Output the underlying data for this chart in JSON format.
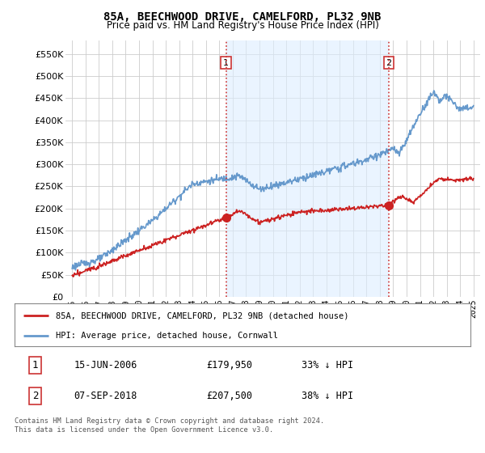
{
  "title": "85A, BEECHWOOD DRIVE, CAMELFORD, PL32 9NB",
  "subtitle": "Price paid vs. HM Land Registry's House Price Index (HPI)",
  "legend_entry1": "85A, BEECHWOOD DRIVE, CAMELFORD, PL32 9NB (detached house)",
  "legend_entry2": "HPI: Average price, detached house, Cornwall",
  "transaction1_date": "15-JUN-2006",
  "transaction1_price": "£179,950",
  "transaction1_pct": "33% ↓ HPI",
  "transaction2_date": "07-SEP-2018",
  "transaction2_price": "£207,500",
  "transaction2_pct": "38% ↓ HPI",
  "footer": "Contains HM Land Registry data © Crown copyright and database right 2024.\nThis data is licensed under the Open Government Licence v3.0.",
  "hpi_color": "#6699cc",
  "hpi_fill_color": "#ddeeff",
  "price_color": "#cc2222",
  "vline_color": "#cc3333",
  "marker_color": "#cc2222",
  "background_color": "#ffffff",
  "grid_color": "#cccccc",
  "ylim": [
    0,
    580000
  ],
  "yticks": [
    0,
    50000,
    100000,
    150000,
    200000,
    250000,
    300000,
    350000,
    400000,
    450000,
    500000,
    550000
  ],
  "transaction1_year": 2006.5,
  "transaction2_year": 2018.68,
  "transaction1_price_val": 179950,
  "transaction2_price_val": 207500
}
